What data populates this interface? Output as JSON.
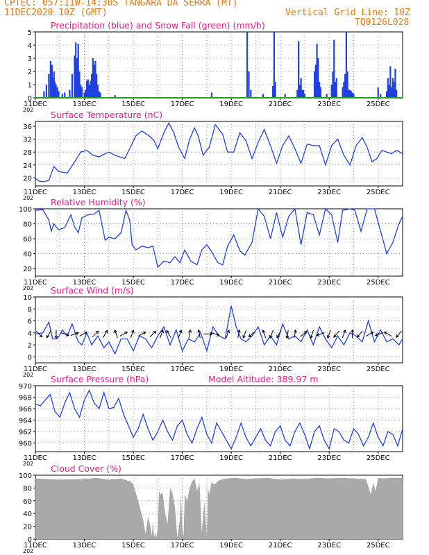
{
  "header": {
    "line1": "CPTEC:  057:11W-14:30S  TANGARA DA SERRA (MT)",
    "line2": "11DEC2020 10Z (GMT)",
    "vertical_grid": "Vertical Grid Line: 10Z",
    "code": "TQ0126L028"
  },
  "colors": {
    "header": "#e07a10",
    "title": "#e0208a",
    "line": "#2040e0",
    "precip": "#2040e0",
    "snow": "#20a020",
    "cloud": "#a9a9a9"
  },
  "x_axis": {
    "labels": [
      "11DEC",
      "13DEC",
      "15DEC",
      "17DEC",
      "19DEC",
      "21DEC",
      "23DEC",
      "25DEC"
    ],
    "label_days": [
      0,
      2,
      4,
      6,
      8,
      10,
      12,
      14
    ],
    "range_days": [
      0,
      15.0
    ],
    "year_fragment": "202"
  },
  "chart_data": [
    {
      "id": "precip",
      "type": "bar",
      "title": "Precipitation (blue) and Snow Fall (green) (mm/h)",
      "ylim": [
        0,
        5
      ],
      "yticks": [
        0,
        1,
        2,
        3,
        4,
        5
      ],
      "series": [
        {
          "name": "Precipitation",
          "color": "#2040e0",
          "x": [
            0.35,
            0.45,
            0.55,
            0.62,
            0.68,
            0.72,
            0.76,
            0.8,
            0.84,
            0.9,
            0.95,
            1.1,
            1.2,
            1.4,
            1.5,
            1.6,
            1.65,
            1.7,
            1.75,
            1.8,
            1.85,
            1.9,
            2.0,
            2.05,
            2.1,
            2.15,
            2.2,
            2.25,
            2.3,
            2.35,
            2.4,
            2.45,
            2.5,
            2.55,
            2.6,
            2.65,
            3.25,
            7.2,
            8.65,
            8.72,
            8.8,
            9.3,
            9.7,
            9.75,
            9.8,
            10.2,
            10.7,
            10.75,
            10.8,
            10.85,
            10.9,
            10.95,
            11.0,
            11.4,
            11.45,
            11.5,
            11.55,
            11.6,
            11.65,
            11.9,
            12.1,
            12.15,
            12.2,
            12.25,
            12.3,
            12.55,
            12.6,
            12.65,
            12.7,
            12.75,
            12.8,
            12.85,
            12.9,
            12.95,
            13.0,
            14.0,
            14.1,
            14.35,
            14.4,
            14.45,
            14.5,
            14.55,
            14.6,
            14.65,
            14.7,
            14.75
          ],
          "values": [
            0.5,
            1.0,
            1.8,
            2.8,
            2.5,
            1.5,
            2.0,
            1.2,
            1.0,
            0.8,
            0.5,
            0.3,
            0.4,
            0.6,
            1.8,
            3.2,
            4.2,
            3.0,
            4.1,
            2.0,
            1.0,
            0.8,
            0.4,
            0.6,
            1.3,
            1.4,
            1.0,
            1.3,
            1.8,
            3.0,
            2.5,
            2.8,
            1.8,
            1.0,
            0.5,
            0.4,
            0.2,
            0.4,
            5.0,
            2.0,
            0.6,
            0.3,
            0.9,
            5.0,
            1.2,
            0.3,
            0.6,
            4.3,
            1.0,
            1.5,
            0.6,
            0.6,
            0.3,
            2.0,
            2.5,
            4.1,
            3.0,
            1.2,
            0.8,
            0.3,
            1.0,
            2.0,
            4.4,
            1.2,
            1.5,
            0.8,
            1.2,
            1.8,
            5.0,
            2.0,
            0.6,
            0.6,
            0.5,
            0.4,
            0.3,
            0.8,
            0.3,
            0.5,
            1.5,
            1.0,
            2.4,
            0.8,
            1.5,
            1.2,
            2.2,
            0.6
          ]
        },
        {
          "name": "Snow Fall",
          "color": "#20a020",
          "x": [
            0,
            15
          ],
          "values": [
            0,
            0
          ]
        }
      ]
    },
    {
      "id": "temperature",
      "type": "line",
      "title": "Surface Temperature (nC)",
      "ylim": [
        17.5,
        37.5
      ],
      "yticks": [
        20,
        24,
        28,
        32,
        36
      ],
      "x": [
        0.0,
        0.15,
        0.35,
        0.55,
        0.75,
        0.95,
        1.3,
        1.65,
        1.85,
        2.1,
        2.35,
        2.6,
        2.85,
        3.0,
        3.25,
        3.45,
        3.65,
        3.85,
        4.1,
        4.35,
        4.65,
        4.85,
        5.0,
        5.25,
        5.45,
        5.65,
        5.85,
        6.1,
        6.3,
        6.5,
        6.65,
        6.85,
        7.1,
        7.35,
        7.65,
        7.85,
        8.1,
        8.35,
        8.6,
        8.85,
        9.1,
        9.35,
        9.6,
        9.85,
        10.1,
        10.35,
        10.6,
        10.85,
        11.1,
        11.35,
        11.6,
        11.85,
        12.1,
        12.35,
        12.6,
        12.85,
        13.1,
        13.35,
        13.55,
        13.75,
        13.95,
        14.15,
        14.35,
        14.55,
        14.75,
        15.0
      ],
      "values": [
        19.8,
        19.0,
        18.8,
        19.2,
        23.5,
        22.0,
        21.5,
        25.5,
        28.0,
        28.5,
        27.0,
        26.5,
        27.5,
        28.0,
        27.0,
        26.5,
        26.0,
        29.0,
        33.0,
        34.5,
        33.0,
        31.5,
        29.0,
        34.0,
        37.0,
        34.0,
        29.5,
        26.0,
        32.0,
        35.5,
        33.0,
        27.0,
        29.5,
        36.5,
        33.5,
        28.0,
        28.0,
        34.0,
        31.5,
        26.0,
        31.0,
        35.0,
        30.0,
        24.5,
        30.0,
        33.0,
        29.0,
        24.5,
        30.5,
        30.0,
        30.0,
        24.0,
        30.0,
        32.0,
        27.0,
        24.0,
        30.0,
        32.5,
        29.5,
        25.0,
        26.0,
        28.5,
        28.0,
        27.5,
        28.5,
        27.5
      ]
    },
    {
      "id": "humidity",
      "type": "line",
      "title": "Relative Humidity (%)",
      "ylim": [
        10,
        100
      ],
      "yticks": [
        20,
        40,
        60,
        80,
        100
      ],
      "x": [
        0.0,
        0.3,
        0.55,
        0.65,
        0.75,
        0.95,
        1.2,
        1.45,
        1.6,
        1.75,
        1.9,
        2.15,
        2.4,
        2.6,
        2.85,
        3.0,
        3.25,
        3.5,
        3.7,
        3.85,
        3.95,
        4.1,
        4.35,
        4.6,
        4.8,
        5.0,
        5.25,
        5.5,
        5.7,
        5.9,
        6.1,
        6.35,
        6.6,
        6.8,
        7.0,
        7.25,
        7.45,
        7.65,
        7.85,
        8.1,
        8.35,
        8.55,
        8.85,
        9.1,
        9.35,
        9.6,
        9.85,
        10.1,
        10.35,
        10.6,
        10.85,
        11.1,
        11.35,
        11.6,
        11.85,
        12.1,
        12.35,
        12.55,
        12.85,
        13.05,
        13.3,
        13.55,
        13.85,
        14.1,
        14.35,
        14.6,
        14.85,
        15.0
      ],
      "values": [
        98,
        99,
        85,
        70,
        80,
        72,
        75,
        92,
        76,
        68,
        88,
        92,
        93,
        98,
        58,
        62,
        60,
        68,
        98,
        85,
        52,
        45,
        50,
        48,
        50,
        22,
        30,
        28,
        36,
        28,
        45,
        30,
        25,
        45,
        52,
        40,
        28,
        25,
        50,
        65,
        44,
        38,
        55,
        100,
        90,
        60,
        95,
        62,
        90,
        100,
        52,
        95,
        92,
        65,
        100,
        92,
        55,
        98,
        100,
        98,
        70,
        100,
        100,
        70,
        40,
        55,
        80,
        90
      ]
    },
    {
      "id": "wind",
      "type": "line",
      "title": "Surface Wind (m/s)",
      "ylim": [
        -1,
        10
      ],
      "yticks": [
        0,
        2,
        4,
        6,
        8,
        10
      ],
      "x": [
        0.0,
        0.3,
        0.55,
        0.7,
        0.9,
        1.1,
        1.3,
        1.5,
        1.75,
        1.9,
        2.1,
        2.3,
        2.55,
        2.8,
        3.0,
        3.25,
        3.5,
        3.75,
        4.0,
        4.25,
        4.5,
        4.75,
        5.0,
        5.25,
        5.5,
        5.75,
        6.0,
        6.25,
        6.5,
        6.75,
        7.0,
        7.25,
        7.5,
        7.75,
        8.0,
        8.2,
        8.4,
        8.6,
        8.85,
        9.1,
        9.35,
        9.6,
        9.85,
        10.1,
        10.35,
        10.6,
        10.85,
        11.1,
        11.35,
        11.6,
        11.85,
        12.1,
        12.35,
        12.6,
        12.85,
        13.1,
        13.35,
        13.6,
        13.85,
        14.1,
        14.35,
        14.6,
        14.85,
        15.0
      ],
      "values": [
        3.8,
        4.0,
        5.8,
        3.0,
        3.0,
        4.5,
        3.5,
        5.5,
        2.5,
        2.0,
        4.0,
        2.0,
        3.5,
        1.5,
        2.5,
        0.5,
        3.0,
        3.0,
        1.0,
        3.5,
        3.0,
        1.5,
        3.5,
        5.0,
        2.0,
        4.5,
        1.0,
        3.0,
        2.5,
        4.0,
        1.0,
        5.0,
        3.5,
        3.0,
        8.5,
        5.0,
        3.0,
        2.5,
        3.5,
        5.0,
        2.0,
        3.5,
        2.0,
        5.5,
        3.0,
        3.5,
        2.5,
        4.5,
        2.0,
        5.0,
        3.0,
        1.5,
        3.5,
        2.0,
        4.0,
        3.5,
        2.5,
        6.0,
        2.5,
        4.5,
        2.5,
        3.0,
        2.0,
        3.0
      ],
      "arrows_x": [
        0.15,
        0.55,
        0.85,
        1.2,
        1.6,
        1.95,
        2.45,
        2.85,
        3.3,
        3.6,
        3.95,
        4.35,
        4.8,
        5.15,
        5.45,
        5.9,
        6.3,
        6.7,
        7.05,
        7.35,
        7.85,
        8.3,
        8.55,
        8.85,
        9.35,
        9.65,
        9.95,
        10.3,
        10.6,
        10.95,
        11.3,
        11.65,
        12.0,
        12.3,
        12.6,
        12.95,
        13.25,
        13.65,
        14.05,
        14.4,
        14.85
      ],
      "arrows_dir_deg": [
        135,
        210,
        180,
        110,
        70,
        60,
        45,
        30,
        340,
        60,
        20,
        60,
        45,
        20,
        330,
        20,
        10,
        350,
        90,
        110,
        20,
        10,
        200,
        230,
        340,
        200,
        210,
        190,
        10,
        50,
        200,
        250,
        200,
        220,
        20,
        0,
        220,
        60,
        250,
        300,
        220
      ]
    },
    {
      "id": "pressure",
      "type": "line",
      "title": "Surface Pressure (hPa)",
      "annotation": "Model Altitude: 389.97 m",
      "ylim": [
        958.5,
        970
      ],
      "yticks": [
        960,
        962,
        964,
        966,
        968,
        970
      ],
      "x": [
        0.0,
        0.2,
        0.4,
        0.6,
        0.8,
        1.0,
        1.2,
        1.4,
        1.6,
        1.8,
        2.0,
        2.2,
        2.4,
        2.6,
        2.8,
        3.0,
        3.2,
        3.4,
        3.6,
        3.8,
        4.0,
        4.2,
        4.4,
        4.6,
        4.8,
        5.0,
        5.2,
        5.4,
        5.6,
        5.8,
        6.0,
        6.2,
        6.4,
        6.6,
        6.8,
        7.0,
        7.2,
        7.4,
        7.6,
        7.8,
        8.0,
        8.2,
        8.4,
        8.6,
        8.8,
        9.0,
        9.2,
        9.4,
        9.6,
        9.8,
        10.0,
        10.2,
        10.4,
        10.6,
        10.8,
        11.0,
        11.2,
        11.4,
        11.6,
        11.8,
        12.0,
        12.2,
        12.4,
        12.6,
        12.8,
        13.0,
        13.2,
        13.4,
        13.6,
        13.8,
        14.0,
        14.2,
        14.4,
        14.6,
        14.8,
        15.0
      ],
      "values": [
        966.8,
        966.5,
        967.5,
        968.5,
        965.5,
        964.5,
        967.0,
        968.8,
        966.0,
        964.5,
        967.5,
        969.2,
        967.0,
        966.0,
        968.8,
        966.0,
        966.2,
        967.8,
        965.0,
        963.0,
        961.0,
        962.5,
        965.0,
        962.5,
        960.5,
        962.0,
        964.0,
        962.0,
        960.5,
        963.0,
        964.0,
        961.5,
        960.0,
        962.5,
        964.5,
        961.5,
        960.0,
        963.5,
        962.0,
        960.5,
        959.0,
        961.0,
        963.5,
        961.0,
        959.5,
        961.0,
        962.5,
        960.5,
        959.5,
        962.0,
        963.0,
        960.5,
        959.5,
        962.0,
        963.5,
        961.5,
        959.0,
        962.0,
        963.0,
        960.5,
        959.0,
        962.5,
        962.0,
        960.5,
        960.0,
        962.5,
        961.5,
        959.5,
        961.0,
        963.5,
        961.0,
        959.5,
        962.0,
        961.5,
        959.5,
        962.5
      ]
    },
    {
      "id": "cloud",
      "type": "area",
      "title": "Cloud Cover (%)",
      "ylim": [
        0,
        100
      ],
      "yticks": [
        0,
        20,
        40,
        60,
        80,
        100
      ],
      "x": [
        0.0,
        1.0,
        2.0,
        2.5,
        3.0,
        3.5,
        3.9,
        4.0,
        4.2,
        4.3,
        4.4,
        4.5,
        4.6,
        4.7,
        4.75,
        4.8,
        4.85,
        4.9,
        4.95,
        5.0,
        5.05,
        5.1,
        5.2,
        5.3,
        5.4,
        5.5,
        5.6,
        5.7,
        5.8,
        5.9,
        5.95,
        6.0,
        6.05,
        6.1,
        6.2,
        6.3,
        6.4,
        6.5,
        6.6,
        6.7,
        6.8,
        6.9,
        7.0,
        7.05,
        7.1,
        7.2,
        7.3,
        7.5,
        7.8,
        8.2,
        8.6,
        9.0,
        9.5,
        10.0,
        10.5,
        11.0,
        11.5,
        12.0,
        12.5,
        13.0,
        13.5,
        13.7,
        13.8,
        13.9,
        14.0,
        14.2,
        14.5,
        15.0
      ],
      "values": [
        95,
        93,
        94,
        96,
        93,
        95,
        90,
        85,
        60,
        45,
        30,
        8,
        35,
        20,
        5,
        25,
        3,
        10,
        2,
        20,
        75,
        70,
        72,
        40,
        25,
        80,
        72,
        50,
        2,
        30,
        70,
        15,
        5,
        70,
        60,
        80,
        90,
        95,
        75,
        88,
        10,
        60,
        5,
        80,
        70,
        90,
        85,
        92,
        95,
        96,
        94,
        95,
        96,
        93,
        95,
        94,
        96,
        95,
        96,
        95,
        94,
        70,
        88,
        75,
        96,
        95,
        96,
        96
      ]
    }
  ]
}
